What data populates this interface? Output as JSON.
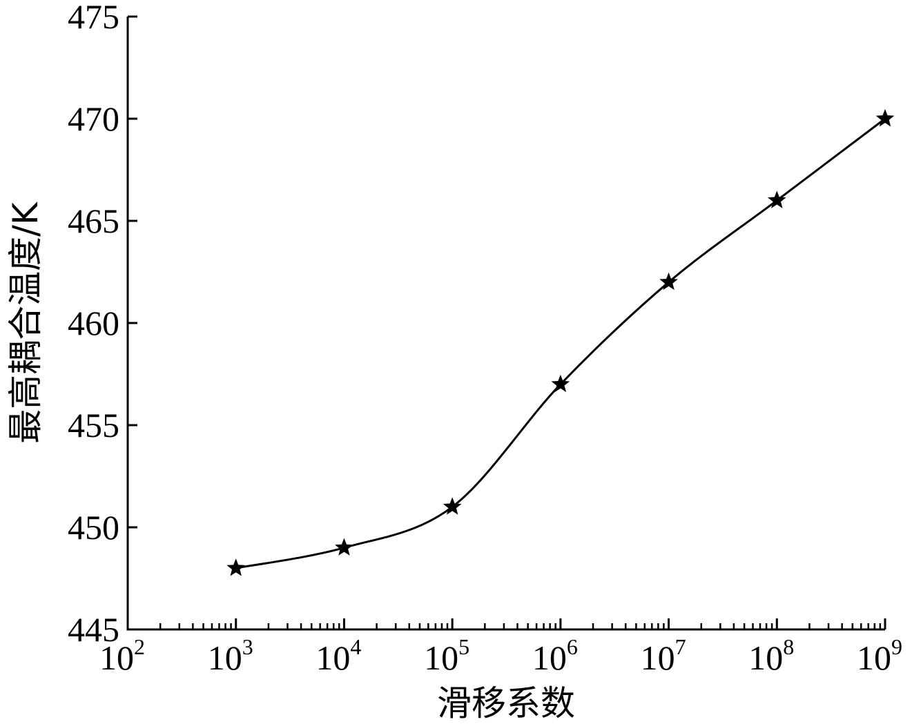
{
  "chart_data": {
    "type": "line",
    "xlabel": "滑移系数",
    "ylabel": "最高耦合温度/K",
    "xscale": "log",
    "xlim": [
      100,
      1000000000
    ],
    "ylim": [
      445,
      475
    ],
    "xticks": [
      {
        "base": "10",
        "exp": "2",
        "value": 100
      },
      {
        "base": "10",
        "exp": "3",
        "value": 1000
      },
      {
        "base": "10",
        "exp": "4",
        "value": 10000
      },
      {
        "base": "10",
        "exp": "5",
        "value": 100000
      },
      {
        "base": "10",
        "exp": "6",
        "value": 1000000
      },
      {
        "base": "10",
        "exp": "7",
        "value": 10000000
      },
      {
        "base": "10",
        "exp": "8",
        "value": 100000000
      },
      {
        "base": "10",
        "exp": "9",
        "value": 1000000000
      }
    ],
    "yticks": [
      "445",
      "450",
      "455",
      "460",
      "465",
      "470",
      "475"
    ],
    "series": [
      {
        "marker": "star",
        "color": "#000000",
        "x": [
          1000,
          10000,
          100000,
          1000000,
          10000000,
          100000000,
          1000000000
        ],
        "y": [
          448,
          449,
          451,
          457,
          462,
          466,
          470
        ]
      }
    ],
    "grid": false
  }
}
